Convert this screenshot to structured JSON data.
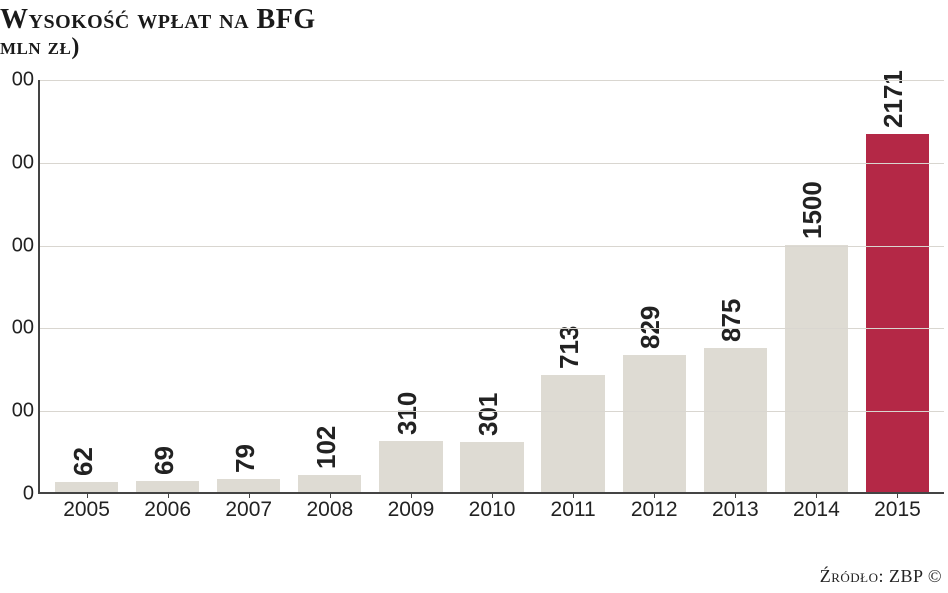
{
  "title": "Wysokość wpłat na BFG",
  "subtitle": "mln zł)",
  "source": "Źródło: ZBP ©",
  "chart": {
    "type": "bar",
    "background_color": "#ffffff",
    "grid_color": "#d9d6d0",
    "axis_color": "#444444",
    "bar_color_default": "#dedbd3",
    "bar_color_highlight": "#b42846",
    "bar_width": 0.78,
    "ylim": [
      0,
      2500
    ],
    "ytick_step": 500,
    "yticks": [
      "0",
      "00",
      "00",
      "00",
      "00",
      "00"
    ],
    "value_label_fontsize": 26,
    "value_label_weight": 700,
    "tick_label_fontsize": 21,
    "title_fontsize": 28,
    "categories": [
      "2005",
      "2006",
      "2007",
      "2008",
      "2009",
      "2010",
      "2011",
      "2012",
      "2013",
      "2014",
      "2015"
    ],
    "values": [
      62,
      69,
      79,
      102,
      310,
      301,
      713,
      829,
      875,
      1500,
      2171
    ],
    "highlight_index": 10
  }
}
